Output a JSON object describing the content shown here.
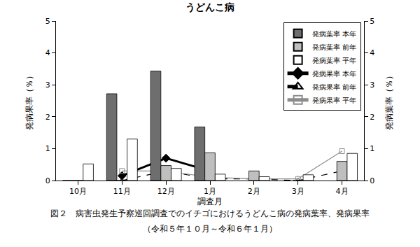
{
  "chart_data": {
    "type": "bar",
    "title": "うどんこ病",
    "x_label": "調査月",
    "y_label": "発病果率（％）",
    "y2_label": "発病葉率（％）",
    "caption": [
      "図２　病害虫発生予察巡回調査でのイチゴにおけるうどんこ病の発病葉率、発病果率",
      "（令和５年１０月～令和６年１月）"
    ],
    "categories": [
      "10月",
      "11月",
      "12月",
      "1月",
      "2月",
      "3月",
      "4月"
    ],
    "series": [
      {
        "name": "発病葉率 本年",
        "type": "bar",
        "axis": "y2",
        "color": "#6e6e6e",
        "values": [
          0,
          2.72,
          3.43,
          1.68,
          null,
          null,
          null
        ]
      },
      {
        "name": "発病葉率 前年",
        "type": "bar",
        "axis": "y2",
        "color": "#bfbfbf",
        "values": [
          0,
          0,
          0.47,
          0.87,
          0.3,
          0,
          0.6
        ]
      },
      {
        "name": "発病葉率 平年",
        "type": "bar",
        "axis": "y2",
        "color": "#ffffff",
        "values": [
          0.52,
          1.3,
          0.38,
          0.2,
          0.12,
          0.18,
          0.85
        ]
      },
      {
        "name": "発病果率 本年",
        "type": "line",
        "axis": "y",
        "color": "#000000",
        "marker": "diamond",
        "line_style": "solid",
        "values": [
          null,
          0.15,
          0.7,
          0.3,
          null,
          null,
          null
        ]
      },
      {
        "name": "発病果率 前年",
        "type": "line",
        "axis": "y",
        "color": "#000000",
        "marker": "triangle-up-open",
        "line_style": "dash",
        "values": [
          null,
          0,
          0.3,
          0.05,
          0.05,
          0,
          0.3
        ]
      },
      {
        "name": "発病果率 平年",
        "type": "line",
        "axis": "y",
        "color": "#8c8c8c",
        "marker": "square-open",
        "line_style": "solid",
        "values": [
          null,
          0.3,
          0.3,
          0.1,
          0.05,
          0.05,
          0.92
        ]
      }
    ],
    "ylim": [
      0,
      5
    ],
    "yticks": [
      0,
      1,
      2,
      3,
      4,
      5
    ],
    "y2lim": [
      0,
      5
    ],
    "y2ticks": [
      0,
      1,
      2,
      3,
      4,
      5
    ],
    "grid": false,
    "legend": "top right"
  }
}
